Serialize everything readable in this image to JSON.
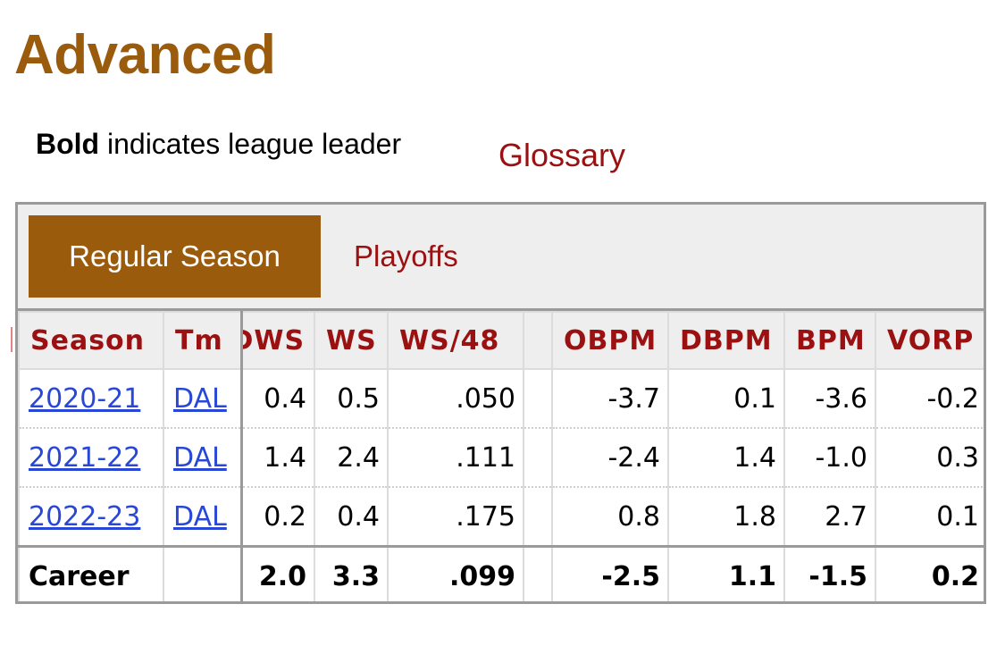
{
  "section": {
    "title": "Advanced",
    "note_bold": "Bold",
    "note_rest": " indicates league leader",
    "glossary_link": "Glossary"
  },
  "tabs": {
    "active": "Regular Season",
    "inactive": "Playoffs"
  },
  "table": {
    "headers": {
      "season": "Season",
      "tm": "Tm",
      "dws": "DWS",
      "ws": "WS",
      "ws48": "WS/48",
      "blank": "",
      "obpm": "OBPM",
      "dbpm": "DBPM",
      "bpm": "BPM",
      "vorp": "VORP"
    },
    "rows": [
      {
        "season": "2020-21",
        "tm": "DAL",
        "dws": "0.4",
        "ws": "0.5",
        "ws48": ".050",
        "obpm": "-3.7",
        "dbpm": "0.1",
        "bpm": "-3.6",
        "vorp": "-0.2"
      },
      {
        "season": "2021-22",
        "tm": "DAL",
        "dws": "1.4",
        "ws": "2.4",
        "ws48": ".111",
        "obpm": "-2.4",
        "dbpm": "1.4",
        "bpm": "-1.0",
        "vorp": "0.3"
      },
      {
        "season": "2022-23",
        "tm": "DAL",
        "dws": "0.2",
        "ws": "0.4",
        "ws48": ".175",
        "obpm": "0.8",
        "dbpm": "1.8",
        "bpm": "2.7",
        "vorp": "0.1"
      }
    ],
    "career": {
      "label": "Career",
      "tm": "",
      "dws": "2.0",
      "ws": "3.3",
      "ws48": ".099",
      "obpm": "-2.5",
      "dbpm": "1.1",
      "bpm": "-1.5",
      "vorp": "0.2"
    }
  },
  "colors": {
    "title_brown": "#9a5b0c",
    "link_red": "#9b1010",
    "link_blue": "#2947d6",
    "header_bg": "#eeeeee"
  }
}
